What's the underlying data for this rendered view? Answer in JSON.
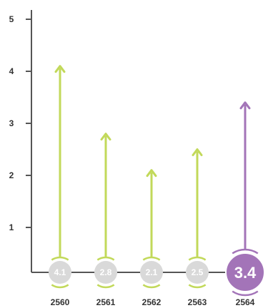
{
  "chart_data": {
    "type": "bar",
    "categories": [
      "2560",
      "2561",
      "2562",
      "2563",
      "2564"
    ],
    "values": [
      4.1,
      2.8,
      2.1,
      2.5,
      3.4
    ],
    "value_labels": [
      "4.1",
      "2.8",
      "2.1",
      "2.5",
      "3.4"
    ],
    "y_ticks": [
      "1",
      "2",
      "3",
      "4",
      "5"
    ],
    "ylim": [
      0,
      5
    ],
    "highlight_index": 4,
    "title": "",
    "xlabel": "",
    "ylabel": "",
    "grid": false,
    "colors": {
      "default_arrow": "#c2d95a",
      "default_circle": "#d9d9d9",
      "highlight": "#a374b8",
      "axis": "#555555",
      "text": "#333333"
    }
  }
}
